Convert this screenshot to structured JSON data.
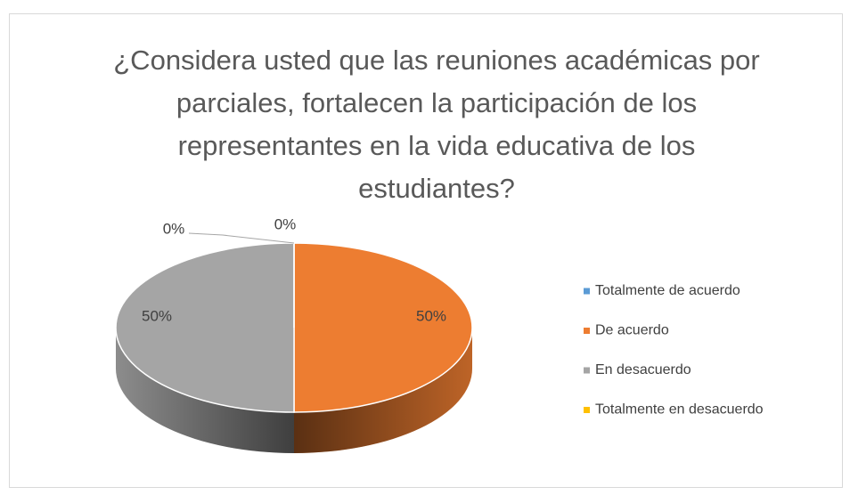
{
  "chart_data": {
    "type": "pie",
    "title": "¿Considera usted que las reuniones académicas por parciales, fortalecen la participación de los representantes en la vida educativa de los estudiantes?",
    "categories": [
      "Totalmente de acuerdo",
      "De acuerdo",
      "En desacuerdo",
      "Totalmente en desacuerdo"
    ],
    "values": [
      0,
      50,
      50,
      0
    ],
    "value_labels": [
      "0%",
      "50%",
      "50%",
      "0%"
    ],
    "colors": [
      "#5b9bd5",
      "#ed7d31",
      "#a5a5a5",
      "#ffc000"
    ],
    "legend": "right"
  }
}
